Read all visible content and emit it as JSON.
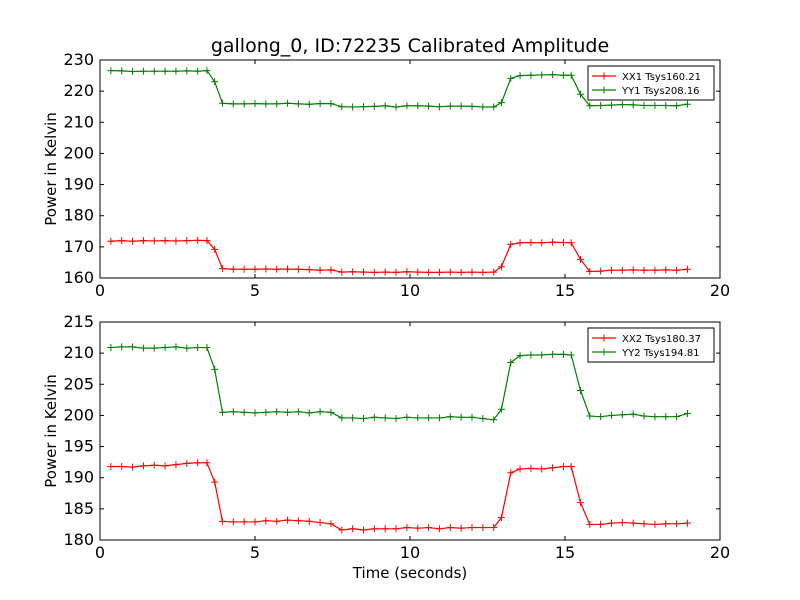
{
  "figure": {
    "title": "gallong_0, ID:72235 Calibrated Amplitude",
    "xlabel": "Time (seconds)"
  },
  "colors": {
    "red_series": "#ff0000",
    "green_series": "#008000",
    "axes": "#000000",
    "background": "#ffffff"
  },
  "chart_data": [
    {
      "type": "line",
      "title": "gallong_0, ID:72235 Calibrated Amplitude",
      "xlabel": "",
      "ylabel": "Power in Kelvin",
      "xlim": [
        0,
        20
      ],
      "ylim": [
        160,
        230
      ],
      "xticks": [
        0,
        5,
        10,
        15,
        20
      ],
      "yticks": [
        160,
        170,
        180,
        190,
        200,
        210,
        220,
        230
      ],
      "grid": false,
      "legend_position": "top-right",
      "x": [
        0.35,
        0.7,
        1.05,
        1.4,
        1.75,
        2.1,
        2.45,
        2.8,
        3.15,
        3.45,
        3.7,
        3.95,
        4.3,
        4.65,
        5.0,
        5.35,
        5.7,
        6.05,
        6.4,
        6.75,
        7.1,
        7.45,
        7.8,
        8.15,
        8.5,
        8.85,
        9.2,
        9.55,
        9.9,
        10.25,
        10.6,
        10.95,
        11.3,
        11.65,
        12.0,
        12.35,
        12.7,
        12.95,
        13.25,
        13.55,
        13.9,
        14.25,
        14.6,
        14.95,
        15.2,
        15.5,
        15.8,
        16.15,
        16.5,
        16.85,
        17.2,
        17.55,
        17.9,
        18.25,
        18.6,
        18.95
      ],
      "series": [
        {
          "name": "XX1 Tsys160.21",
          "color": "#ff0000",
          "values": [
            171.8,
            172.0,
            171.8,
            172.0,
            171.9,
            172.0,
            171.9,
            172.0,
            172.1,
            172.0,
            169.2,
            163.0,
            162.8,
            162.8,
            162.8,
            162.9,
            162.8,
            162.9,
            162.8,
            162.7,
            162.5,
            162.6,
            161.9,
            162.0,
            161.9,
            161.8,
            161.9,
            161.8,
            162.0,
            161.9,
            161.8,
            161.8,
            161.9,
            161.8,
            161.9,
            161.8,
            161.9,
            163.6,
            170.8,
            171.3,
            171.4,
            171.3,
            171.5,
            171.4,
            171.3,
            166.0,
            162.1,
            162.2,
            162.5,
            162.5,
            162.6,
            162.5,
            162.5,
            162.6,
            162.5,
            162.8
          ]
        },
        {
          "name": "YY1 Tsys208.16",
          "color": "#008000",
          "values": [
            226.6,
            226.5,
            226.3,
            226.4,
            226.4,
            226.4,
            226.4,
            226.5,
            226.4,
            226.6,
            223.0,
            216.1,
            215.9,
            215.9,
            216.0,
            215.9,
            215.9,
            216.1,
            215.9,
            215.8,
            216.0,
            216.0,
            215.0,
            214.9,
            215.0,
            215.1,
            215.3,
            214.9,
            215.3,
            215.3,
            215.2,
            215.0,
            215.2,
            215.2,
            215.1,
            214.9,
            214.9,
            216.3,
            224.1,
            225.0,
            225.1,
            225.2,
            225.3,
            225.1,
            225.1,
            219.0,
            215.3,
            215.4,
            215.5,
            215.7,
            215.6,
            215.4,
            215.4,
            215.4,
            215.3,
            215.8
          ]
        }
      ]
    },
    {
      "type": "line",
      "title": "",
      "xlabel": "Time (seconds)",
      "ylabel": "Power in Kelvin",
      "xlim": [
        0,
        20
      ],
      "ylim": [
        180,
        215
      ],
      "xticks": [
        0,
        5,
        10,
        15,
        20
      ],
      "yticks": [
        180,
        185,
        190,
        195,
        200,
        205,
        210,
        215
      ],
      "grid": false,
      "legend_position": "top-right",
      "x": [
        0.35,
        0.7,
        1.05,
        1.4,
        1.75,
        2.1,
        2.45,
        2.8,
        3.15,
        3.45,
        3.7,
        3.95,
        4.3,
        4.65,
        5.0,
        5.35,
        5.7,
        6.05,
        6.4,
        6.75,
        7.1,
        7.45,
        7.8,
        8.15,
        8.5,
        8.85,
        9.2,
        9.55,
        9.9,
        10.25,
        10.6,
        10.95,
        11.3,
        11.65,
        12.0,
        12.35,
        12.7,
        12.95,
        13.25,
        13.55,
        13.9,
        14.25,
        14.6,
        14.95,
        15.2,
        15.5,
        15.8,
        16.15,
        16.5,
        16.85,
        17.2,
        17.55,
        17.9,
        18.25,
        18.6,
        18.95
      ],
      "series": [
        {
          "name": "XX2 Tsys180.37",
          "color": "#ff0000",
          "values": [
            191.8,
            191.8,
            191.7,
            191.9,
            192.0,
            191.9,
            192.1,
            192.3,
            192.4,
            192.4,
            189.3,
            183.0,
            182.9,
            182.9,
            182.9,
            183.1,
            183.0,
            183.2,
            183.1,
            183.0,
            182.8,
            182.6,
            181.6,
            181.8,
            181.6,
            181.8,
            181.8,
            181.8,
            182.0,
            181.9,
            182.0,
            181.8,
            182.0,
            181.9,
            182.0,
            182.0,
            182.0,
            183.6,
            190.8,
            191.4,
            191.5,
            191.4,
            191.6,
            191.8,
            191.8,
            186.0,
            182.5,
            182.5,
            182.7,
            182.8,
            182.7,
            182.6,
            182.5,
            182.6,
            182.6,
            182.7
          ]
        },
        {
          "name": "YY2 Tsys194.81",
          "color": "#008000",
          "values": [
            210.9,
            211.0,
            211.0,
            210.8,
            210.8,
            210.9,
            211.0,
            210.8,
            210.9,
            210.9,
            207.4,
            200.5,
            200.6,
            200.5,
            200.4,
            200.5,
            200.6,
            200.5,
            200.6,
            200.4,
            200.6,
            200.5,
            199.6,
            199.6,
            199.5,
            199.7,
            199.6,
            199.5,
            199.7,
            199.6,
            199.6,
            199.6,
            199.8,
            199.7,
            199.7,
            199.5,
            199.3,
            201.0,
            208.5,
            209.6,
            209.7,
            209.7,
            209.8,
            209.8,
            209.7,
            204.0,
            199.9,
            199.8,
            200.0,
            200.1,
            200.2,
            199.9,
            199.8,
            199.8,
            199.8,
            200.3
          ]
        }
      ]
    }
  ]
}
